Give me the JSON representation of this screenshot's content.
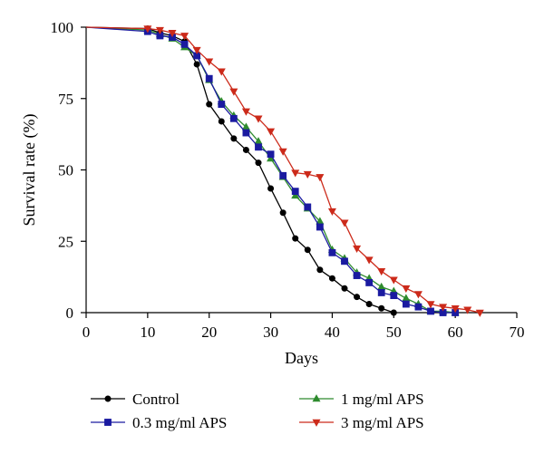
{
  "chart_data": {
    "type": "line",
    "title": "",
    "xlabel": "Days",
    "ylabel": "Survival rate (%)",
    "xlim": [
      0,
      70
    ],
    "ylim": [
      0,
      100
    ],
    "xticks": [
      0,
      10,
      20,
      30,
      40,
      50,
      60,
      70
    ],
    "yticks": [
      0,
      25,
      50,
      75,
      100
    ],
    "grid": false,
    "legend_placement": "bottom",
    "series": [
      {
        "name": "Control",
        "color": "#000000",
        "marker": "circle",
        "x": [
          0,
          10,
          12,
          14,
          16,
          18,
          20,
          22,
          24,
          26,
          28,
          30,
          32,
          34,
          36,
          38,
          40,
          42,
          44,
          46,
          48,
          50
        ],
        "y": [
          100,
          99.5,
          98,
          97,
          95,
          87,
          73,
          67,
          61,
          57,
          52.5,
          43.5,
          35,
          26,
          22,
          15,
          12,
          8.5,
          5.5,
          3,
          1.5,
          0
        ]
      },
      {
        "name": "0.3 mg/ml APS",
        "color": "#1a1aa0",
        "marker": "square",
        "x": [
          0,
          10,
          12,
          14,
          16,
          18,
          20,
          22,
          24,
          26,
          28,
          30,
          32,
          34,
          36,
          38,
          40,
          42,
          44,
          46,
          48,
          50,
          52,
          54,
          56,
          58,
          60
        ],
        "y": [
          100,
          98.5,
          97,
          96.5,
          94,
          90,
          82,
          73,
          68,
          63,
          58,
          55.5,
          48,
          42.5,
          37,
          30,
          21,
          18,
          13,
          10.5,
          7,
          6,
          3,
          2,
          0.5,
          0,
          0
        ]
      },
      {
        "name": "1 mg/ml APS",
        "color": "#2e8b2e",
        "marker": "triangle-up",
        "x": [
          0,
          10,
          12,
          14,
          16,
          18,
          20,
          22,
          24,
          26,
          28,
          30,
          32,
          34,
          36,
          38,
          40,
          42,
          44,
          46,
          48,
          50,
          52,
          54,
          56,
          58,
          60
        ],
        "y": [
          100,
          99,
          97.5,
          96,
          93,
          90,
          81.5,
          74,
          69,
          65,
          60,
          54,
          47.5,
          41,
          36.5,
          32,
          22,
          19,
          14,
          12,
          9,
          7.5,
          5,
          3,
          0.5,
          0.5,
          0
        ]
      },
      {
        "name": "3 mg/ml APS",
        "color": "#cc2a1a",
        "marker": "triangle-down",
        "x": [
          0,
          10,
          12,
          14,
          16,
          18,
          20,
          22,
          24,
          26,
          28,
          30,
          32,
          34,
          36,
          38,
          40,
          42,
          44,
          46,
          48,
          50,
          52,
          54,
          56,
          58,
          60,
          62,
          64
        ],
        "y": [
          100,
          99.5,
          99,
          98,
          97,
          92,
          88,
          84.5,
          77.5,
          70.5,
          68,
          63.5,
          56.5,
          49,
          48.5,
          47.5,
          35.5,
          31.5,
          22.5,
          18.5,
          14.5,
          11.5,
          8.5,
          6.5,
          3,
          2,
          1.5,
          1,
          0
        ]
      }
    ],
    "legend": [
      {
        "label": "Control",
        "series": 0
      },
      {
        "label": "1 mg/ml APS",
        "series": 2
      },
      {
        "label": "0.3 mg/ml APS",
        "series": 1
      },
      {
        "label": "3 mg/ml APS",
        "series": 3
      }
    ]
  }
}
